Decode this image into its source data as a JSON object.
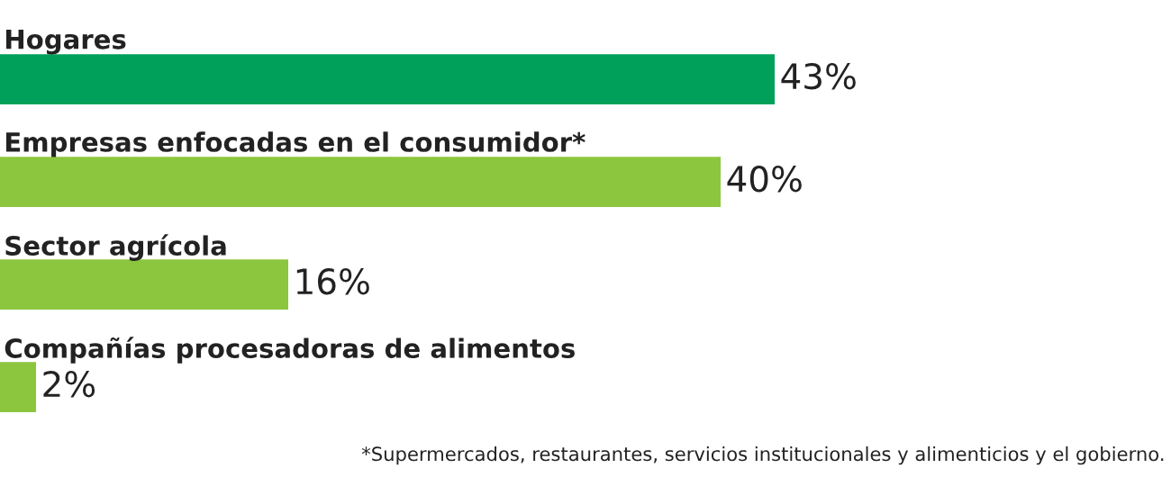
{
  "chart_data": {
    "type": "bar",
    "orientation": "horizontal",
    "categories": [
      "Hogares",
      "Empresas enfocadas en el consumidor*",
      "Sector agrícola",
      "Compañías procesadoras de alimentos"
    ],
    "values": [
      43,
      40,
      16,
      2
    ],
    "value_labels": [
      "43%",
      "40%",
      "16%",
      "2%"
    ],
    "colors": [
      "#00a05a",
      "#8cc63f",
      "#8cc63f",
      "#8cc63f"
    ],
    "annotations": [
      "*Supermercados, restaurantes, servicios institucionales y alimenticios y el gobierno."
    ],
    "data_labels": false
  }
}
